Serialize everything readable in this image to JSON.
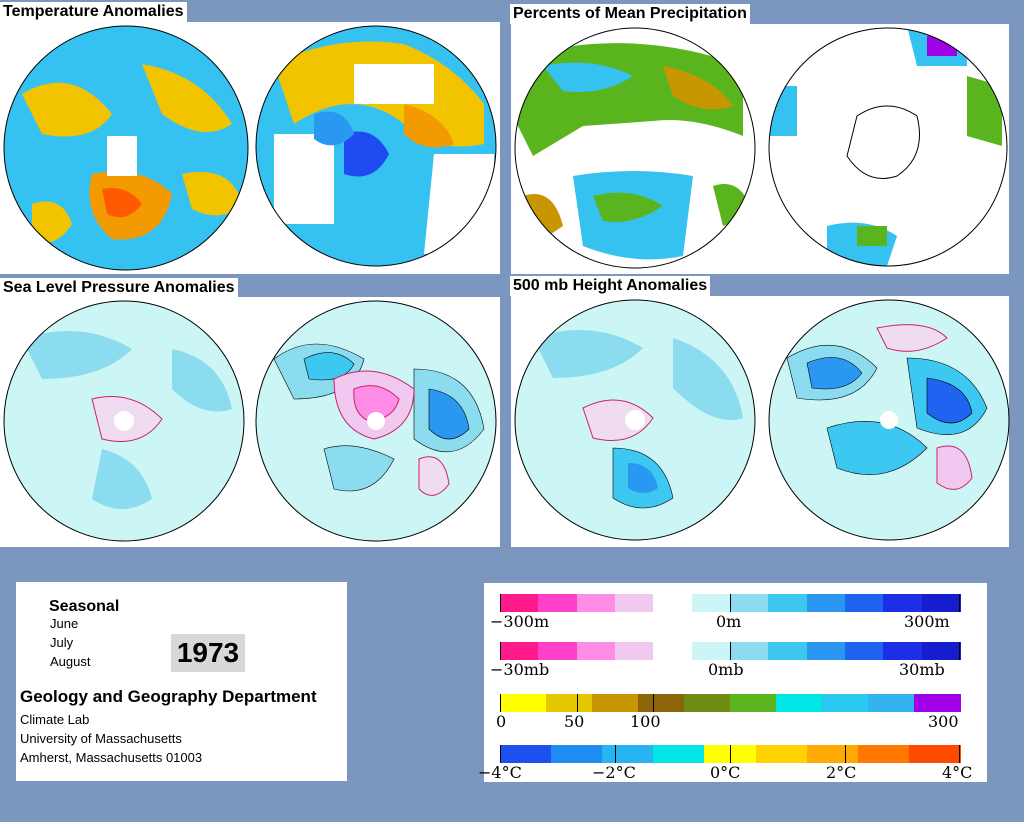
{
  "panels": {
    "temperature": {
      "title": "Temperature Anomalies"
    },
    "precipitation": {
      "title": "Percents of Mean Precipitation"
    },
    "slp": {
      "title": "Sea Level Pressure Anomalies"
    },
    "height500": {
      "title": "500 mb Height Anomalies"
    }
  },
  "info": {
    "heading": "Seasonal",
    "months": [
      "June",
      "July",
      "August"
    ],
    "year": "1973",
    "department": "Geology and Geography Department",
    "lab": "Climate Lab",
    "university": "University of Massachusetts",
    "address": "Amherst, Massachusetts 01003"
  },
  "legend": {
    "height_scale": {
      "labels": [
        "−300m",
        "0m",
        "300m"
      ],
      "colors": [
        "#ff1a8c",
        "#ff40c8",
        "#ff8ce6",
        "#f0c8f0",
        "#ffffff",
        "#ccf6f6",
        "#8cdcf0",
        "#3cc8f0",
        "#2a98f0",
        "#1e64f0",
        "#1e2ee6",
        "#141ecc"
      ]
    },
    "pressure_scale": {
      "labels": [
        "−30mb",
        "0mb",
        "30mb"
      ],
      "colors": [
        "#ff1a8c",
        "#ff40c8",
        "#ff8ce6",
        "#f0c8f0",
        "#ffffff",
        "#ccf6f6",
        "#8cdcf0",
        "#3cc8f0",
        "#2a98f0",
        "#1e64f0",
        "#1e2ee6",
        "#141ecc"
      ]
    },
    "precip_scale": {
      "labels": [
        "0",
        "50",
        "100",
        "300"
      ],
      "colors": [
        "#ffff00",
        "#e6c800",
        "#c89600",
        "#8c640a",
        "#6e8c14",
        "#5ab41e",
        "#00e6e6",
        "#28c8f0",
        "#32b4f0",
        "#a000e6"
      ]
    },
    "temp_scale": {
      "labels": [
        "−4°C",
        "−2°C",
        "0°C",
        "2°C",
        "4°C"
      ],
      "colors": [
        "#1e50f0",
        "#1e8cf0",
        "#28b4f0",
        "#00e6e6",
        "#ffff00",
        "#ffd200",
        "#ffaa00",
        "#ff7800",
        "#ff4b00"
      ]
    }
  }
}
